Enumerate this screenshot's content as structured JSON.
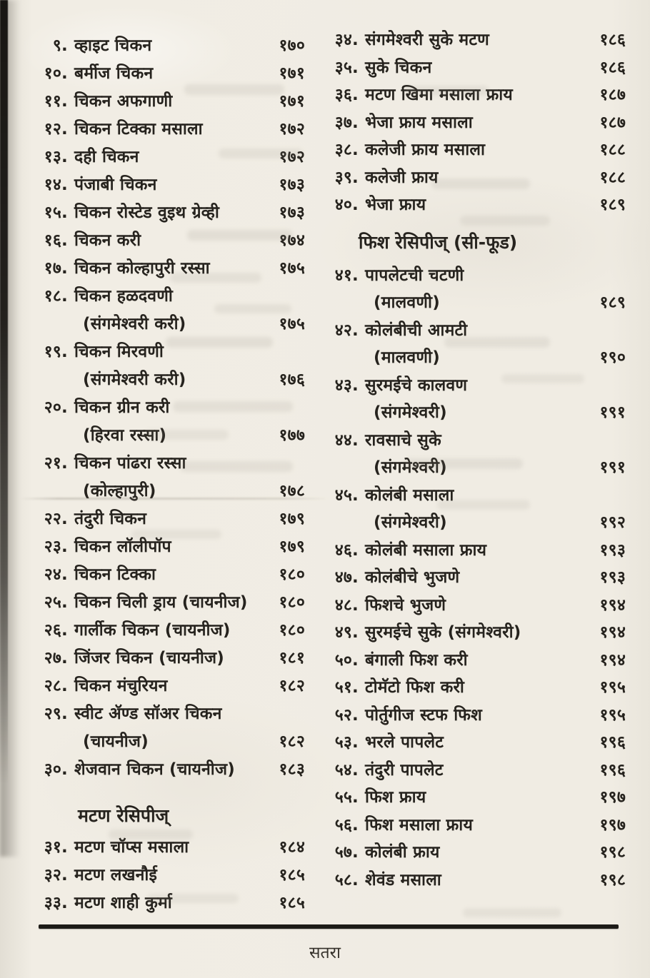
{
  "document": {
    "type": "book-index-page",
    "language": "Marathi",
    "footer_page_label": "सतरा"
  },
  "colors": {
    "ink": "#26231e",
    "paper": "#efebe2",
    "rule": "#1d1b17"
  },
  "columns": [
    {
      "side": "left",
      "blocks": [
        {
          "type": "entries",
          "items": [
            {
              "no": "९.",
              "title": "व्हाइट चिकन",
              "page": "१७०"
            },
            {
              "no": "१०.",
              "title": "बर्मीज चिकन",
              "page": "१७१"
            },
            {
              "no": "११.",
              "title": "चिकन अफगाणी",
              "page": "१७१"
            },
            {
              "no": "१२.",
              "title": "चिकन टिक्का मसाला",
              "page": "१७२"
            },
            {
              "no": "१३.",
              "title": "दही चिकन",
              "page": "१७२"
            },
            {
              "no": "१४.",
              "title": "पंजाबी चिकन",
              "page": "१७३"
            },
            {
              "no": "१५.",
              "title": "चिकन रोस्टेड वुइथ ग्रेव्ही",
              "page": "१७३"
            },
            {
              "no": "१६.",
              "title": "चिकन करी",
              "page": "१७४"
            },
            {
              "no": "१७.",
              "title": "चिकन कोल्हापुरी रस्सा",
              "page": "१७५"
            },
            {
              "no": "१८.",
              "title": "चिकन हळदवणी",
              "sub": "(संगमेश्वरी करी)",
              "page": "१७५"
            },
            {
              "no": "१९.",
              "title": "चिकन मिरवणी",
              "sub": "(संगमेश्वरी करी)",
              "page": "१७६"
            },
            {
              "no": "२०.",
              "title": "चिकन ग्रीन करी",
              "sub": "(हिरवा रस्सा)",
              "page": "१७७"
            },
            {
              "no": "२१.",
              "title": "चिकन पांढरा रस्सा",
              "sub": "(कोल्हापुरी)",
              "page": "१७८"
            },
            {
              "no": "२२.",
              "title": "तंदुरी चिकन",
              "page": "१७९"
            },
            {
              "no": "२३.",
              "title": "चिकन लॉलीपॉप",
              "page": "१७९"
            },
            {
              "no": "२४.",
              "title": "चिकन टिक्का",
              "page": "१८०"
            },
            {
              "no": "२५.",
              "title": "चिकन चिली ड्राय (चायनीज)",
              "page": "१८०"
            },
            {
              "no": "२६.",
              "title": "गार्लीक चिकन (चायनीज)",
              "page": "१८०"
            },
            {
              "no": "२७.",
              "title": "जिंजर चिकन (चायनीज)",
              "page": "१८१"
            },
            {
              "no": "२८.",
              "title": "चिकन मंचुरियन",
              "page": "१८२"
            },
            {
              "no": "२९.",
              "title": "स्वीट ॲण्ड सॉअर चिकन",
              "sub": "(चायनीज)",
              "page": "१८२"
            },
            {
              "no": "३०.",
              "title": "शेजवान चिकन (चायनीज)",
              "page": "१८३"
            }
          ]
        },
        {
          "type": "heading",
          "name": "section-heading-mutton-recipes",
          "text": "मटण रेसिपीज्"
        },
        {
          "type": "entries",
          "items": [
            {
              "no": "३१.",
              "title": "मटण चॉप्स मसाला",
              "page": "१८४"
            },
            {
              "no": "३२.",
              "title": "मटण लखनौई",
              "page": "१८५"
            },
            {
              "no": "३३.",
              "title": "मटण शाही कुर्मा",
              "page": "१८५"
            }
          ]
        }
      ]
    },
    {
      "side": "right",
      "blocks": [
        {
          "type": "entries",
          "items": [
            {
              "no": "३४.",
              "title": "संगमेश्वरी सुके मटण",
              "page": "१८६"
            },
            {
              "no": "३५.",
              "title": "सुके चिकन",
              "page": "१८६"
            },
            {
              "no": "३६.",
              "title": "मटण खिमा मसाला फ्राय",
              "page": "१८७"
            },
            {
              "no": "३७.",
              "title": "भेजा फ्राय मसाला",
              "page": "१८७"
            },
            {
              "no": "३८.",
              "title": "कलेजी फ्राय मसाला",
              "page": "१८८"
            },
            {
              "no": "३९.",
              "title": "कलेजी फ्राय",
              "page": "१८८"
            },
            {
              "no": "४०.",
              "title": "भेजा फ्राय",
              "page": "१८९"
            }
          ]
        },
        {
          "type": "heading",
          "name": "section-heading-fish-recipes",
          "text": "फिश रेसिपीज् (सी-फूड)"
        },
        {
          "type": "entries",
          "items": [
            {
              "no": "४१.",
              "title": "पापलेटची चटणी",
              "sub": "(मालवणी)",
              "page": "१८९"
            },
            {
              "no": "४२.",
              "title": "कोलंबीची आमटी",
              "sub": "(मालवणी)",
              "page": "१९०"
            },
            {
              "no": "४३.",
              "title": "सुरमईचे कालवण",
              "sub": "(संगमेश्वरी)",
              "page": "१९१"
            },
            {
              "no": "४४.",
              "title": "रावसाचे सुके",
              "sub": "(संगमेश्वरी)",
              "page": "१९१"
            },
            {
              "no": "४५.",
              "title": "कोलंबी मसाला",
              "sub": "(संगमेश्वरी)",
              "page": "१९२"
            },
            {
              "no": "४६.",
              "title": "कोलंबी मसाला फ्राय",
              "page": "१९३"
            },
            {
              "no": "४७.",
              "title": "कोलंबीचे भुजणे",
              "page": "१९३"
            },
            {
              "no": "४८.",
              "title": "फिशचे भुजणे",
              "page": "१९४"
            },
            {
              "no": "४९.",
              "title": "सुरमईचे सुके (संगमेश्वरी)",
              "page": "१९४"
            },
            {
              "no": "५०.",
              "title": "बंगाली फिश करी",
              "page": "१९४"
            },
            {
              "no": "५१.",
              "title": "टोमॅटो फिश करी",
              "page": "१९५"
            },
            {
              "no": "५२.",
              "title": "पोर्तुगीज स्टफ फिश",
              "page": "१९५"
            },
            {
              "no": "५३.",
              "title": "भरले पापलेट",
              "page": "१९६"
            },
            {
              "no": "५४.",
              "title": "तंदुरी पापलेट",
              "page": "१९६"
            },
            {
              "no": "५५.",
              "title": "फिश फ्राय",
              "page": "१९७"
            },
            {
              "no": "५६.",
              "title": "फिश मसाला फ्राय",
              "page": "१९७"
            },
            {
              "no": "५७.",
              "title": "कोलंबी फ्राय",
              "page": "१९८"
            },
            {
              "no": "५८.",
              "title": "शेवंड मसाला",
              "page": "१९८"
            }
          ]
        }
      ]
    }
  ]
}
